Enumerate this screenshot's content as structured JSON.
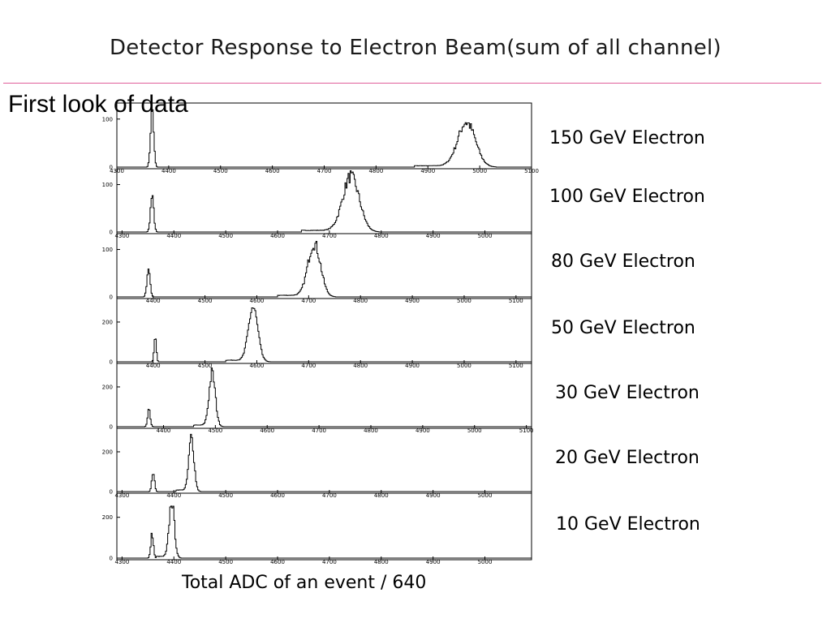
{
  "slide": {
    "title": "Detector Response to Electron Beam(sum of all channel)",
    "subtitle": "First look of data",
    "xlabel": "Total ADC of an event / 640"
  },
  "colors": {
    "rule": "#e0609a",
    "line": "#000000"
  },
  "chart_data": [
    {
      "type": "line",
      "label": "150 GeV Electron",
      "xlim": [
        4300,
        5100
      ],
      "xticks": [
        4300,
        4400,
        4500,
        4600,
        4700,
        4800,
        4900,
        5000,
        5100
      ],
      "ylim": [
        0,
        130
      ],
      "yticks": [
        0,
        100
      ],
      "peaks": [
        {
          "center": 4368,
          "sigma": 3,
          "height": 125
        },
        {
          "center": 4975,
          "sigma": 17,
          "height": 92
        }
      ]
    },
    {
      "type": "line",
      "label": "100 GeV Electron",
      "xlim": [
        4290,
        5090
      ],
      "xticks": [
        4300,
        4400,
        4500,
        4600,
        4700,
        4800,
        4900,
        5000
      ],
      "ylim": [
        0,
        130
      ],
      "yticks": [
        0,
        100
      ],
      "peaks": [
        {
          "center": 4358,
          "sigma": 3,
          "height": 82
        },
        {
          "center": 4742,
          "sigma": 16,
          "height": 115
        }
      ]
    },
    {
      "type": "line",
      "label": "80 GeV Electron",
      "xlim": [
        4330,
        5130
      ],
      "xticks": [
        4400,
        4500,
        4600,
        4700,
        4800,
        4900,
        5000,
        5100
      ],
      "ylim": [
        0,
        130
      ],
      "yticks": [
        0,
        100
      ],
      "peaks": [
        {
          "center": 4391,
          "sigma": 3,
          "height": 58
        },
        {
          "center": 4711,
          "sigma": 12,
          "height": 112
        }
      ]
    },
    {
      "type": "line",
      "label": "50 GeV Electron",
      "xlim": [
        4330,
        5130
      ],
      "xticks": [
        4400,
        4500,
        4600,
        4700,
        4800,
        4900,
        5000,
        5100
      ],
      "ylim": [
        0,
        310
      ],
      "yticks": [
        0,
        200
      ],
      "peaks": [
        {
          "center": 4404,
          "sigma": 2,
          "height": 140
        },
        {
          "center": 4593,
          "sigma": 9,
          "height": 270
        }
      ]
    },
    {
      "type": "line",
      "label": "30 GeV Electron",
      "xlim": [
        4310,
        5110
      ],
      "xticks": [
        4400,
        4500,
        4600,
        4700,
        4800,
        4900,
        5000,
        5100
      ],
      "ylim": [
        0,
        310
      ],
      "yticks": [
        0,
        200
      ],
      "peaks": [
        {
          "center": 4372,
          "sigma": 2.5,
          "height": 85
        },
        {
          "center": 4494,
          "sigma": 6,
          "height": 265
        }
      ]
    },
    {
      "type": "line",
      "label": "20 GeV Electron",
      "xlim": [
        4290,
        5090
      ],
      "xticks": [
        4300,
        4400,
        4500,
        4600,
        4700,
        4800,
        4900,
        5000
      ],
      "ylim": [
        0,
        310
      ],
      "yticks": [
        0,
        200
      ],
      "peaks": [
        {
          "center": 4360,
          "sigma": 2.5,
          "height": 100
        },
        {
          "center": 4434,
          "sigma": 5,
          "height": 270
        }
      ]
    },
    {
      "type": "line",
      "label": "10 GeV Electron",
      "xlim": [
        4290,
        5090
      ],
      "xticks": [
        4300,
        4400,
        4500,
        4600,
        4700,
        4800,
        4900,
        5000
      ],
      "ylim": [
        0,
        310
      ],
      "yticks": [
        0,
        200
      ],
      "peaks": [
        {
          "center": 4358,
          "sigma": 2.5,
          "height": 120
        },
        {
          "center": 4396,
          "sigma": 5,
          "height": 275
        }
      ]
    }
  ]
}
